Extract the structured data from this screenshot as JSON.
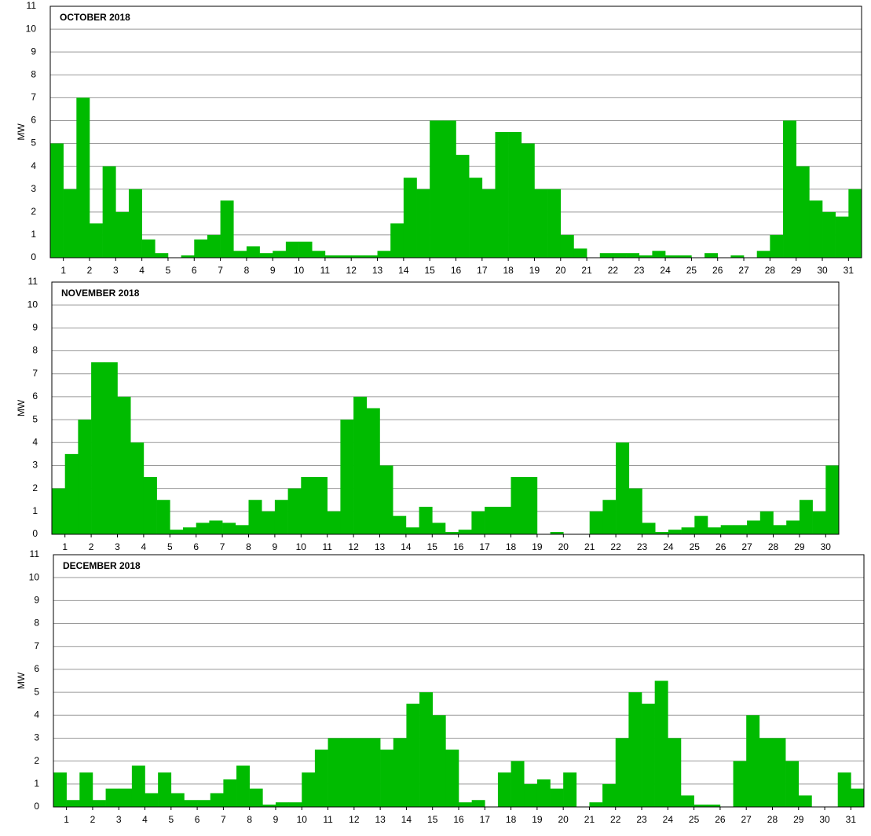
{
  "chart_data": [
    {
      "type": "bar",
      "title": "OCTOBER 2018",
      "y_label": "MW",
      "color": "#00bb00",
      "grid": true,
      "xlim": [
        0.5,
        31.5
      ],
      "xticks": [
        1,
        2,
        3,
        4,
        5,
        6,
        7,
        8,
        9,
        10,
        11,
        12,
        13,
        14,
        15,
        16,
        17,
        18,
        19,
        20,
        21,
        22,
        23,
        24,
        25,
        26,
        27,
        28,
        29,
        30,
        31
      ],
      "ylim": [
        0,
        11
      ],
      "yticks": [
        0,
        1,
        2,
        3,
        4,
        5,
        6,
        7,
        8,
        9,
        10,
        11
      ],
      "x": [
        0.75,
        1.25,
        1.75,
        2.25,
        2.75,
        3.25,
        3.75,
        4.25,
        4.75,
        5.25,
        5.75,
        6.25,
        6.75,
        7.25,
        7.75,
        8.25,
        8.75,
        9.25,
        9.75,
        10.25,
        10.75,
        11.25,
        11.75,
        12.25,
        12.75,
        13.25,
        13.75,
        14.25,
        14.75,
        15.25,
        15.75,
        16.25,
        16.75,
        17.25,
        17.75,
        18.25,
        18.75,
        19.25,
        19.75,
        20.25,
        20.75,
        21.25,
        21.75,
        22.25,
        22.75,
        23.25,
        23.75,
        24.25,
        24.75,
        25.25,
        25.75,
        26.25,
        26.75,
        27.25,
        27.75,
        28.25,
        28.75,
        29.25,
        29.75,
        30.25,
        30.75,
        31.25
      ],
      "values": [
        5,
        3,
        7,
        1.5,
        4,
        2,
        3,
        0.8,
        0.2,
        0,
        0.1,
        0.8,
        1,
        2.5,
        0.3,
        0.5,
        0.2,
        0.3,
        0.7,
        0.7,
        0.3,
        0.1,
        0.1,
        0.1,
        0.1,
        0.3,
        1.5,
        3.5,
        3,
        6,
        6,
        4.5,
        3.5,
        3,
        5.5,
        5.5,
        5,
        3,
        3,
        1,
        0.4,
        0,
        0.2,
        0.2,
        0.2,
        0.1,
        0.3,
        0.1,
        0.1,
        0,
        0.2,
        0,
        0.1,
        0,
        0.3,
        1,
        6,
        4,
        2.5,
        2,
        1.8,
        3
      ]
    },
    {
      "type": "bar",
      "title": "NOVEMBER 2018",
      "y_label": "MW",
      "color": "#00bb00",
      "grid": true,
      "xlim": [
        0.5,
        30.5
      ],
      "xticks": [
        1,
        2,
        3,
        4,
        5,
        6,
        7,
        8,
        9,
        10,
        11,
        12,
        13,
        14,
        15,
        16,
        17,
        18,
        19,
        20,
        21,
        22,
        23,
        24,
        25,
        26,
        27,
        28,
        29,
        30
      ],
      "ylim": [
        0,
        11
      ],
      "yticks": [
        0,
        1,
        2,
        3,
        4,
        5,
        6,
        7,
        8,
        9,
        10,
        11
      ],
      "x": [
        0.75,
        1.25,
        1.75,
        2.25,
        2.75,
        3.25,
        3.75,
        4.25,
        4.75,
        5.25,
        5.75,
        6.25,
        6.75,
        7.25,
        7.75,
        8.25,
        8.75,
        9.25,
        9.75,
        10.25,
        10.75,
        11.25,
        11.75,
        12.25,
        12.75,
        13.25,
        13.75,
        14.25,
        14.75,
        15.25,
        15.75,
        16.25,
        16.75,
        17.25,
        17.75,
        18.25,
        18.75,
        19.25,
        19.75,
        20.25,
        20.75,
        21.25,
        21.75,
        22.25,
        22.75,
        23.25,
        23.75,
        24.25,
        24.75,
        25.25,
        25.75,
        26.25,
        26.75,
        27.25,
        27.75,
        28.25,
        28.75,
        29.25,
        29.75,
        30.25
      ],
      "values": [
        2,
        3.5,
        5,
        7.5,
        7.5,
        6,
        4,
        2.5,
        1.5,
        0.2,
        0.3,
        0.5,
        0.6,
        0.5,
        0.4,
        1.5,
        1,
        1.5,
        2,
        2.5,
        2.5,
        1,
        5,
        6,
        5.5,
        3,
        0.8,
        0.3,
        1.2,
        0.5,
        0.1,
        0.2,
        1,
        1.2,
        1.2,
        2.5,
        2.5,
        0,
        0.1,
        0,
        0,
        1,
        1.5,
        4,
        2,
        0.5,
        0.1,
        0.2,
        0.3,
        0.8,
        0.3,
        0.4,
        0.4,
        0.6,
        1,
        0.4,
        0.6,
        1.5,
        1,
        3
      ]
    },
    {
      "type": "bar",
      "title": "DECEMBER 2018",
      "y_label": "MW",
      "color": "#00bb00",
      "grid": true,
      "xlim": [
        0.5,
        31.5
      ],
      "xticks": [
        1,
        2,
        3,
        4,
        5,
        6,
        7,
        8,
        9,
        10,
        11,
        12,
        13,
        14,
        15,
        16,
        17,
        18,
        19,
        20,
        21,
        22,
        23,
        24,
        25,
        26,
        27,
        28,
        29,
        30,
        31
      ],
      "ylim": [
        0,
        11
      ],
      "yticks": [
        0,
        1,
        2,
        3,
        4,
        5,
        6,
        7,
        8,
        9,
        10,
        11
      ],
      "x": [
        0.75,
        1.25,
        1.75,
        2.25,
        2.75,
        3.25,
        3.75,
        4.25,
        4.75,
        5.25,
        5.75,
        6.25,
        6.75,
        7.25,
        7.75,
        8.25,
        8.75,
        9.25,
        9.75,
        10.25,
        10.75,
        11.25,
        11.75,
        12.25,
        12.75,
        13.25,
        13.75,
        14.25,
        14.75,
        15.25,
        15.75,
        16.25,
        16.75,
        17.25,
        17.75,
        18.25,
        18.75,
        19.25,
        19.75,
        20.25,
        20.75,
        21.25,
        21.75,
        22.25,
        22.75,
        23.25,
        23.75,
        24.25,
        24.75,
        25.25,
        25.75,
        26.25,
        26.75,
        27.25,
        27.75,
        28.25,
        28.75,
        29.25,
        29.75,
        30.25,
        30.75,
        31.25
      ],
      "values": [
        1.5,
        0.3,
        1.5,
        0.3,
        0.8,
        0.8,
        1.8,
        0.6,
        1.5,
        0.6,
        0.3,
        0.3,
        0.6,
        1.2,
        1.8,
        0.8,
        0.1,
        0.2,
        0.2,
        1.5,
        2.5,
        3,
        3,
        3,
        3,
        2.5,
        3,
        4.5,
        5,
        4,
        2.5,
        0.2,
        0.3,
        0,
        1.5,
        2,
        1,
        1.2,
        0.8,
        1.5,
        0,
        0.2,
        1,
        3,
        5,
        4.5,
        5.5,
        3,
        0.5,
        0.1,
        0.1,
        0,
        2,
        4,
        3,
        3,
        2,
        0.5,
        0,
        0,
        1.5,
        0.8
      ]
    }
  ]
}
